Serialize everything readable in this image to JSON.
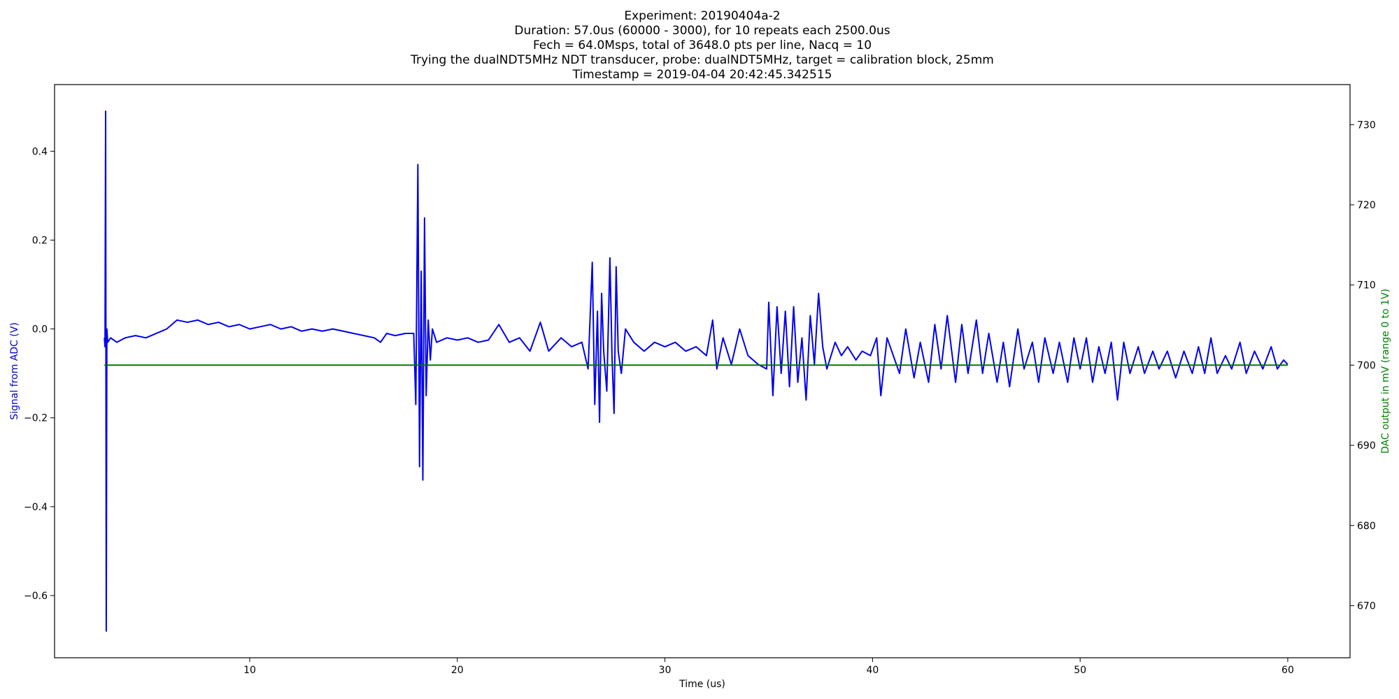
{
  "chart_data": {
    "type": "line",
    "title_lines": [
      "Experiment: 20190404a-2",
      "Duration: 57.0us (60000 - 3000), for 10 repeats each 2500.0us",
      "Fech = 64.0Msps, total of 3648.0 pts per line, Nacq = 10",
      "Trying the dualNDT5MHz NDT transducer, probe: dualNDT5MHz, target = calibration block, 25mm",
      "Timestamp = 2019-04-04 20:42:45.342515"
    ],
    "xlabel": "Time (us)",
    "ylabel": "Signal from ADC (V)",
    "y2label": "DAC output in mV (range 0 to 1V)",
    "xlim": [
      0.6,
      63.0
    ],
    "ylim": [
      -0.74,
      0.55
    ],
    "y2lim": [
      663.5,
      735.0
    ],
    "xticks": [
      10,
      20,
      30,
      40,
      50,
      60
    ],
    "yticks": [
      -0.6,
      -0.4,
      -0.2,
      0.0,
      0.2,
      0.4
    ],
    "y2ticks": [
      670,
      680,
      690,
      700,
      710,
      720,
      730
    ],
    "grid": false,
    "colors": {
      "adc": "#0000ee",
      "dac": "#007700",
      "ylabel": "#0000cc",
      "y2label": "#008000"
    },
    "series": [
      {
        "axis": "left",
        "color": "#0000ee",
        "points": [
          [
            3.0,
            -0.02
          ],
          [
            3.03,
            -0.04
          ],
          [
            3.06,
            0.49
          ],
          [
            3.09,
            -0.68
          ],
          [
            3.12,
            0.0
          ],
          [
            3.16,
            -0.03
          ],
          [
            3.3,
            -0.02
          ],
          [
            3.6,
            -0.03
          ],
          [
            4.0,
            -0.02
          ],
          [
            4.5,
            -0.015
          ],
          [
            5.0,
            -0.02
          ],
          [
            5.5,
            -0.01
          ],
          [
            6.0,
            0.0
          ],
          [
            6.5,
            0.02
          ],
          [
            7.0,
            0.015
          ],
          [
            7.5,
            0.02
          ],
          [
            8.0,
            0.01
          ],
          [
            8.5,
            0.015
          ],
          [
            9.0,
            0.005
          ],
          [
            9.5,
            0.01
          ],
          [
            10.0,
            0.0
          ],
          [
            10.5,
            0.005
          ],
          [
            11.0,
            0.01
          ],
          [
            11.5,
            0.0
          ],
          [
            12.0,
            0.005
          ],
          [
            12.5,
            -0.005
          ],
          [
            13.0,
            0.0
          ],
          [
            13.5,
            -0.005
          ],
          [
            14.0,
            0.0
          ],
          [
            14.5,
            -0.005
          ],
          [
            15.0,
            -0.01
          ],
          [
            15.5,
            -0.015
          ],
          [
            16.0,
            -0.02
          ],
          [
            16.3,
            -0.03
          ],
          [
            16.6,
            -0.01
          ],
          [
            17.0,
            -0.015
          ],
          [
            17.5,
            -0.01
          ],
          [
            17.9,
            -0.01
          ],
          [
            18.0,
            -0.17
          ],
          [
            18.1,
            0.37
          ],
          [
            18.18,
            -0.31
          ],
          [
            18.26,
            0.13
          ],
          [
            18.34,
            -0.34
          ],
          [
            18.42,
            0.25
          ],
          [
            18.5,
            -0.15
          ],
          [
            18.6,
            0.02
          ],
          [
            18.7,
            -0.07
          ],
          [
            18.8,
            0.0
          ],
          [
            19.0,
            -0.03
          ],
          [
            19.5,
            -0.02
          ],
          [
            20.0,
            -0.025
          ],
          [
            20.5,
            -0.02
          ],
          [
            21.0,
            -0.03
          ],
          [
            21.5,
            -0.025
          ],
          [
            22.0,
            0.01
          ],
          [
            22.5,
            -0.03
          ],
          [
            23.0,
            -0.02
          ],
          [
            23.5,
            -0.05
          ],
          [
            24.0,
            0.015
          ],
          [
            24.4,
            -0.05
          ],
          [
            25.0,
            -0.02
          ],
          [
            25.5,
            -0.04
          ],
          [
            26.0,
            -0.03
          ],
          [
            26.3,
            -0.09
          ],
          [
            26.5,
            0.15
          ],
          [
            26.62,
            -0.17
          ],
          [
            26.75,
            0.04
          ],
          [
            26.85,
            -0.21
          ],
          [
            26.95,
            0.08
          ],
          [
            27.05,
            -0.05
          ],
          [
            27.2,
            -0.14
          ],
          [
            27.35,
            0.16
          ],
          [
            27.45,
            -0.06
          ],
          [
            27.55,
            -0.19
          ],
          [
            27.65,
            0.14
          ],
          [
            27.75,
            -0.05
          ],
          [
            27.9,
            -0.1
          ],
          [
            28.1,
            0.0
          ],
          [
            28.5,
            -0.03
          ],
          [
            29.0,
            -0.05
          ],
          [
            29.5,
            -0.03
          ],
          [
            30.0,
            -0.04
          ],
          [
            30.5,
            -0.03
          ],
          [
            31.0,
            -0.05
          ],
          [
            31.5,
            -0.04
          ],
          [
            32.0,
            -0.06
          ],
          [
            32.3,
            0.02
          ],
          [
            32.5,
            -0.09
          ],
          [
            32.8,
            -0.02
          ],
          [
            33.2,
            -0.08
          ],
          [
            33.6,
            0.0
          ],
          [
            34.0,
            -0.06
          ],
          [
            34.5,
            -0.08
          ],
          [
            34.9,
            -0.09
          ],
          [
            35.0,
            0.06
          ],
          [
            35.2,
            -0.15
          ],
          [
            35.4,
            0.05
          ],
          [
            35.6,
            -0.1
          ],
          [
            35.8,
            0.04
          ],
          [
            36.0,
            -0.13
          ],
          [
            36.2,
            0.05
          ],
          [
            36.4,
            -0.12
          ],
          [
            36.6,
            -0.02
          ],
          [
            36.8,
            -0.16
          ],
          [
            37.0,
            0.03
          ],
          [
            37.2,
            -0.08
          ],
          [
            37.4,
            0.08
          ],
          [
            37.6,
            -0.04
          ],
          [
            37.8,
            -0.09
          ],
          [
            38.2,
            -0.03
          ],
          [
            38.5,
            -0.06
          ],
          [
            38.8,
            -0.04
          ],
          [
            39.2,
            -0.07
          ],
          [
            39.5,
            -0.05
          ],
          [
            39.9,
            -0.06
          ],
          [
            40.2,
            -0.02
          ],
          [
            40.4,
            -0.15
          ],
          [
            40.7,
            -0.02
          ],
          [
            41.0,
            -0.06
          ],
          [
            41.3,
            -0.1
          ],
          [
            41.6,
            0.0
          ],
          [
            42.0,
            -0.11
          ],
          [
            42.3,
            -0.03
          ],
          [
            42.7,
            -0.12
          ],
          [
            43.0,
            0.01
          ],
          [
            43.3,
            -0.09
          ],
          [
            43.6,
            0.03
          ],
          [
            44.0,
            -0.12
          ],
          [
            44.3,
            0.01
          ],
          [
            44.6,
            -0.1
          ],
          [
            45.0,
            0.02
          ],
          [
            45.3,
            -0.1
          ],
          [
            45.6,
            -0.01
          ],
          [
            46.0,
            -0.12
          ],
          [
            46.3,
            -0.03
          ],
          [
            46.6,
            -0.13
          ],
          [
            47.0,
            0.0
          ],
          [
            47.3,
            -0.09
          ],
          [
            47.7,
            -0.03
          ],
          [
            48.0,
            -0.12
          ],
          [
            48.3,
            -0.02
          ],
          [
            48.7,
            -0.1
          ],
          [
            49.0,
            -0.03
          ],
          [
            49.4,
            -0.12
          ],
          [
            49.7,
            -0.02
          ],
          [
            50.0,
            -0.09
          ],
          [
            50.3,
            -0.02
          ],
          [
            50.6,
            -0.12
          ],
          [
            50.9,
            -0.04
          ],
          [
            51.2,
            -0.1
          ],
          [
            51.5,
            -0.03
          ],
          [
            51.8,
            -0.16
          ],
          [
            52.1,
            -0.03
          ],
          [
            52.4,
            -0.1
          ],
          [
            52.8,
            -0.04
          ],
          [
            53.1,
            -0.1
          ],
          [
            53.5,
            -0.05
          ],
          [
            53.8,
            -0.09
          ],
          [
            54.2,
            -0.05
          ],
          [
            54.6,
            -0.11
          ],
          [
            55.0,
            -0.05
          ],
          [
            55.4,
            -0.1
          ],
          [
            55.7,
            -0.04
          ],
          [
            56.0,
            -0.1
          ],
          [
            56.3,
            -0.02
          ],
          [
            56.6,
            -0.1
          ],
          [
            57.0,
            -0.06
          ],
          [
            57.3,
            -0.09
          ],
          [
            57.7,
            -0.03
          ],
          [
            58.0,
            -0.1
          ],
          [
            58.4,
            -0.05
          ],
          [
            58.8,
            -0.09
          ],
          [
            59.2,
            -0.04
          ],
          [
            59.5,
            -0.09
          ],
          [
            59.8,
            -0.07
          ],
          [
            60.0,
            -0.08
          ]
        ]
      },
      {
        "axis": "right",
        "color": "#007700",
        "points": [
          [
            3.0,
            700.0
          ],
          [
            60.0,
            700.0
          ]
        ]
      }
    ]
  }
}
